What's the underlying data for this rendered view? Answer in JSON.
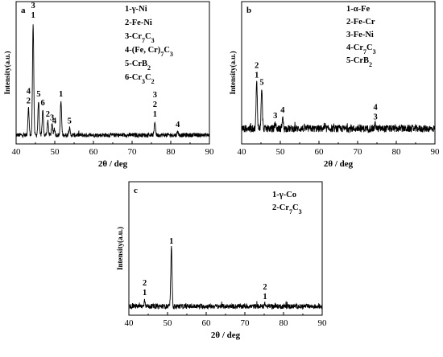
{
  "chart_data": [
    {
      "type": "line",
      "panel_label": "a",
      "xlabel": "2θ / deg",
      "ylabel": "Intensity(a.u.)",
      "xlim": [
        40,
        90
      ],
      "xticks": [
        40,
        50,
        60,
        70,
        80,
        90
      ],
      "legend_position": "top-right",
      "legend": [
        "1-γ-Ni",
        "2-Fe-Ni",
        "3-Cr7C3",
        "4-(Fe, Cr)7C3",
        "5-CrB2",
        "6-Cr3C2"
      ],
      "peaks": [
        {
          "x": 43.2,
          "y": 0.24,
          "labels": [
            "4",
            "2"
          ]
        },
        {
          "x": 44.4,
          "y": 1.0,
          "labels": [
            "4",
            "3",
            "1"
          ]
        },
        {
          "x": 45.8,
          "y": 0.3,
          "labels": [
            "5"
          ]
        },
        {
          "x": 46.9,
          "y": 0.22,
          "labels": [
            "6"
          ]
        },
        {
          "x": 48.2,
          "y": 0.12,
          "labels": [
            "2"
          ]
        },
        {
          "x": 49.3,
          "y": 0.09,
          "labels": [
            "3"
          ]
        },
        {
          "x": 49.9,
          "y": 0.06,
          "labels": [
            "4"
          ]
        },
        {
          "x": 51.6,
          "y": 0.3,
          "labels": [
            "1"
          ]
        },
        {
          "x": 53.8,
          "y": 0.06,
          "labels": [
            "5"
          ]
        },
        {
          "x": 75.9,
          "y": 0.12,
          "labels": [
            "3",
            "2",
            "1"
          ]
        },
        {
          "x": 81.8,
          "y": 0.03,
          "labels": [
            "4"
          ]
        }
      ]
    },
    {
      "type": "line",
      "panel_label": "b",
      "xlabel": "2θ / deg",
      "ylabel": "Intensity(a.u.)",
      "xlim": [
        40,
        90
      ],
      "xticks": [
        40,
        50,
        60,
        70,
        80,
        90
      ],
      "legend_position": "top-right",
      "legend": [
        "1-α-Fe",
        "2-Fe-Cr",
        "3-Fe-Ni",
        "4-Cr7C3",
        "5-CrB2"
      ],
      "peaks": [
        {
          "x": 43.9,
          "y": 0.5,
          "labels": [
            "2",
            "1"
          ]
        },
        {
          "x": 45.2,
          "y": 0.42,
          "labels": [
            "5"
          ]
        },
        {
          "x": 48.7,
          "y": 0.06,
          "labels": [
            "3"
          ]
        },
        {
          "x": 50.6,
          "y": 0.12,
          "labels": [
            "4"
          ]
        },
        {
          "x": 74.6,
          "y": 0.05,
          "labels": [
            "4",
            "3"
          ]
        }
      ]
    },
    {
      "type": "line",
      "panel_label": "c",
      "xlabel": "2θ / deg",
      "ylabel": "Intensity(a.u.)",
      "xlim": [
        40,
        90
      ],
      "xticks": [
        40,
        50,
        60,
        70,
        80,
        90
      ],
      "legend_position": "top-right",
      "legend": [
        "1-γ-Co",
        "2-Cr7C3"
      ],
      "peaks": [
        {
          "x": 44.1,
          "y": 0.11,
          "labels": [
            "2",
            "1"
          ]
        },
        {
          "x": 51.0,
          "y": 1.0,
          "labels": [
            "1"
          ]
        },
        {
          "x": 75.2,
          "y": 0.04,
          "labels": [
            "2",
            "1"
          ]
        }
      ]
    }
  ]
}
